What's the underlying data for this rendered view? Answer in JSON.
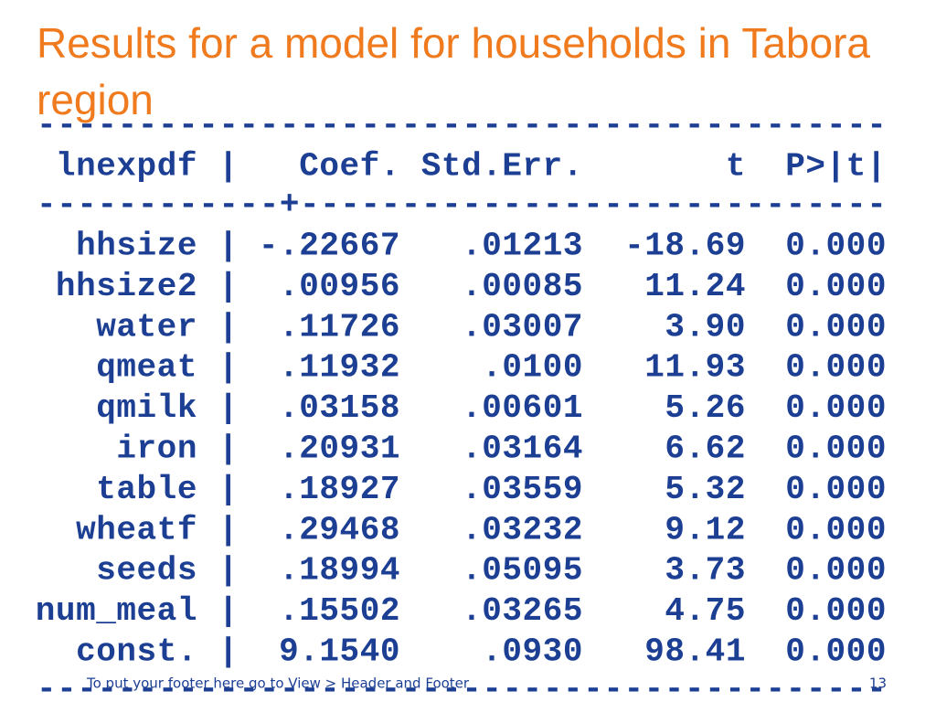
{
  "title": "Results for a model for households in Tabora region",
  "table": {
    "rule_top": "------------------------------------------",
    "header": [
      "lnexpdf",
      "Coef.",
      "Std.Err.",
      "t",
      "P>|t|"
    ],
    "column_separator": "|",
    "rule_mid": "------------+-----------------------------",
    "rows": [
      [
        "hhsize",
        "-.22667",
        ".01213",
        "-18.69",
        "0.000"
      ],
      [
        "hhsize2",
        ".00956",
        ".00085",
        "11.24",
        "0.000"
      ],
      [
        "water",
        ".11726",
        ".03007",
        "3.90",
        "0.000"
      ],
      [
        "qmeat",
        ".11932",
        ".0100",
        "11.93",
        "0.000"
      ],
      [
        "qmilk",
        ".03158",
        ".00601",
        "5.26",
        "0.000"
      ],
      [
        "iron",
        ".20931",
        ".03164",
        "6.62",
        "0.000"
      ],
      [
        "table",
        ".18927",
        ".03559",
        "5.32",
        "0.000"
      ],
      [
        "wheatf",
        ".29468",
        ".03232",
        "9.12",
        "0.000"
      ],
      [
        "seeds",
        ".18994",
        ".05095",
        "3.73",
        "0.000"
      ],
      [
        "num_meal",
        ".15502",
        ".03265",
        "4.75",
        "0.000"
      ],
      [
        "const.",
        "9.1540",
        ".0930",
        "98.41",
        "0.000"
      ]
    ],
    "rule_bottom": "------------------------------------------"
  },
  "footer": {
    "text": "To put your footer here go to View > Header and Footer",
    "page": "13"
  }
}
